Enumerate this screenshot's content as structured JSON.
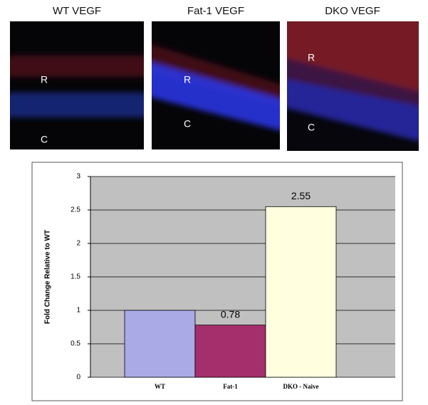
{
  "panels": [
    {
      "title": "WT VEGF",
      "labels": [
        "R",
        "C"
      ]
    },
    {
      "title": "Fat-1 VEGF",
      "labels": [
        "R",
        "C"
      ]
    },
    {
      "title": "DKO VEGF",
      "labels": [
        "R",
        "C"
      ]
    }
  ],
  "chart_data": {
    "type": "bar",
    "y_label": "Fold Change Relative to WT",
    "categories": [
      "WT",
      "Fat-1",
      "DKO - Naive"
    ],
    "values": [
      1,
      0.78,
      2.55
    ],
    "colors": [
      "#aaaae6",
      "#a52f6c",
      "#ffffe0"
    ],
    "show_value_labels": [
      false,
      true,
      true
    ],
    "ylim": [
      0,
      3
    ],
    "yticks": [
      0,
      0.5,
      1,
      1.5,
      2,
      2.5,
      3
    ],
    "grid": true,
    "plot_background": "#c0c0c0"
  }
}
